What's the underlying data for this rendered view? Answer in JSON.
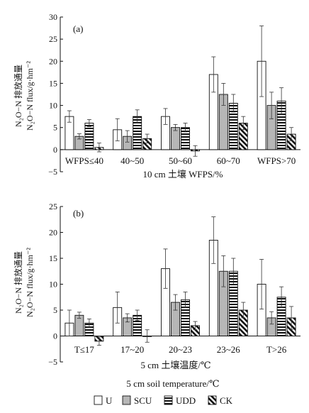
{
  "chart_data": [
    {
      "panel_label": "(a)",
      "type": "bar",
      "ylabel_lines": [
        "N₂O−N 排放通量",
        "N₂O−N flux/g·hm⁻²"
      ],
      "xlabel": "10 cm 土壤 WFPS/%",
      "ylim": [
        -5,
        30
      ],
      "yticks": [
        -5,
        0,
        5,
        10,
        15,
        20,
        25,
        30
      ],
      "categories": [
        "WFPS≤40",
        "40~50",
        "50~60",
        "60~70",
        "WFPS>70"
      ],
      "series": [
        {
          "name": "U",
          "values": [
            7.5,
            4.5,
            7.5,
            17.0,
            20.0
          ],
          "errors": [
            1.3,
            2.5,
            1.8,
            4.0,
            8.0
          ]
        },
        {
          "name": "SCU",
          "values": [
            3.0,
            3.0,
            5.0,
            12.5,
            10.0
          ],
          "errors": [
            0.6,
            1.3,
            0.7,
            2.5,
            3.0
          ]
        },
        {
          "name": "UDD",
          "values": [
            6.0,
            7.5,
            5.0,
            10.5,
            11.0
          ],
          "errors": [
            0.8,
            1.5,
            1.0,
            2.0,
            3.0
          ]
        },
        {
          "name": "CK",
          "values": [
            0.5,
            2.5,
            -0.3,
            6.0,
            3.5
          ],
          "errors": [
            1.0,
            1.0,
            1.2,
            1.5,
            1.5
          ]
        }
      ]
    },
    {
      "panel_label": "(b)",
      "type": "bar",
      "ylabel_lines": [
        "N₂O−N 排放通量",
        "N₂O−N flux/g·hm⁻²"
      ],
      "xlabel": "5 cm 土壤温度/℃",
      "xlabel2": "5 cm soil temperature/℃",
      "ylim": [
        -5,
        25
      ],
      "yticks": [
        -5,
        0,
        5,
        10,
        15,
        20,
        25
      ],
      "categories": [
        "T≤17",
        "17~20",
        "20~23",
        "23~26",
        "T>26"
      ],
      "series": [
        {
          "name": "U",
          "values": [
            2.5,
            5.5,
            13.0,
            18.5,
            10.0
          ],
          "errors": [
            2.5,
            3.0,
            3.8,
            4.5,
            4.8
          ]
        },
        {
          "name": "SCU",
          "values": [
            4.0,
            3.5,
            6.5,
            12.5,
            3.5
          ],
          "errors": [
            0.6,
            0.8,
            1.5,
            3.0,
            1.2
          ]
        },
        {
          "name": "UDD",
          "values": [
            2.5,
            4.0,
            7.0,
            12.5,
            7.5
          ],
          "errors": [
            0.8,
            1.0,
            1.5,
            2.5,
            2.0
          ]
        },
        {
          "name": "CK",
          "values": [
            -1.0,
            0.0,
            2.0,
            5.0,
            3.5
          ],
          "errors": [
            0.8,
            1.2,
            0.8,
            1.5,
            2.2
          ]
        }
      ]
    }
  ],
  "legend": [
    {
      "label": "U",
      "pattern": "empty"
    },
    {
      "label": "SCU",
      "pattern": "dots"
    },
    {
      "label": "UDD",
      "pattern": "hlines"
    },
    {
      "label": "CK",
      "pattern": "diag"
    }
  ]
}
